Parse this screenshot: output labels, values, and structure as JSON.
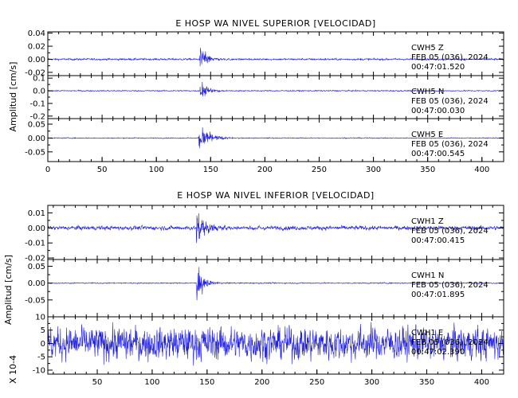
{
  "chart_data": [
    {
      "type": "line",
      "title": "E HOSP WA NIVEL SUPERIOR [VELOCIDAD]",
      "ylabel": "Amplitud [cm/s]",
      "xlabel": "",
      "xlim": [
        0,
        420
      ],
      "x_ticks": [
        0,
        50,
        100,
        150,
        200,
        250,
        300,
        350,
        400
      ],
      "grid": false,
      "line_color": "#1f1fd6",
      "traces": [
        {
          "station": "CWH5",
          "component": "Z",
          "date": "FEB 05 (036), 2024",
          "time": "00:47:01.520",
          "ylim": [
            -0.025,
            0.042
          ],
          "y_ticks": [
            0.04,
            0.02,
            0.0,
            -0.02
          ],
          "y_tick_labels": [
            "0.04",
            "0.02",
            "0.00",
            "-0.02"
          ],
          "noise_amplitude": 0.0012,
          "event_onset": 140,
          "event_peak_amplitude": 0.022,
          "event_decay": 6,
          "event_duration": 60
        },
        {
          "station": "CWH5",
          "component": "N",
          "date": "FEB 05 (036), 2024",
          "time": "00:47:00.030",
          "ylim": [
            -0.22,
            0.12
          ],
          "y_ticks": [
            0.1,
            0.0,
            -0.1,
            -0.2
          ],
          "y_tick_labels": [
            "0.1",
            "0.0",
            "-0.1",
            "-0.2"
          ],
          "noise_amplitude": 0.004,
          "event_onset": 140,
          "event_peak_amplitude": 0.1,
          "event_decay": 6,
          "event_duration": 45
        },
        {
          "station": "CWH5",
          "component": "E",
          "date": "FEB 05 (036), 2024",
          "time": "00:47:00.545",
          "ylim": [
            -0.085,
            0.07
          ],
          "y_ticks": [
            0.05,
            0.0,
            -0.05
          ],
          "y_tick_labels": [
            "0.05",
            "0.00",
            "-0.05"
          ],
          "noise_amplitude": 0.0015,
          "event_onset": 139,
          "event_peak_amplitude": 0.055,
          "event_decay": 9,
          "event_duration": 55
        }
      ]
    },
    {
      "type": "line",
      "title": "E HOSP WA NIVEL INFERIOR [VELOCIDAD]",
      "ylabel": "Amplitud [cm/s]",
      "xlabel": "",
      "xlim": [
        5,
        420
      ],
      "x_ticks": [
        50,
        100,
        150,
        200,
        250,
        300,
        350,
        400
      ],
      "grid": false,
      "line_color": "#1f1fd6",
      "traces": [
        {
          "station": "CWH1",
          "component": "Z",
          "date": "FEB 05 (036), 2024",
          "time": "00:47:00.415",
          "ylim": [
            -0.021,
            0.015
          ],
          "y_ticks": [
            0.01,
            0.0,
            -0.01,
            -0.02
          ],
          "y_tick_labels": [
            "0.01",
            "0.00",
            "-0.01",
            "-0.02"
          ],
          "noise_amplitude": 0.0012,
          "event_onset": 140,
          "event_peak_amplitude": 0.013,
          "event_decay": 8,
          "event_duration": 60
        },
        {
          "station": "CWH1",
          "component": "N",
          "date": "FEB 05 (036), 2024",
          "time": "00:47:01.895",
          "ylim": [
            -0.1,
            0.07
          ],
          "y_ticks": [
            0.05,
            0.0,
            -0.05
          ],
          "y_tick_labels": [
            "0.05",
            "0.00",
            "-0.05"
          ],
          "noise_amplitude": 0.0015,
          "event_onset": 140,
          "event_peak_amplitude": 0.06,
          "event_decay": 6,
          "event_duration": 45
        },
        {
          "station": "CWH1",
          "component": "E",
          "date": "FEB 05 (036), 2024",
          "time": "00:47:02.390",
          "ylim": [
            -11.5,
            10
          ],
          "y_ticks": [
            10,
            5,
            0,
            -5,
            -10
          ],
          "y_tick_labels": [
            "10",
            "5",
            "0",
            "-5",
            "-10"
          ],
          "scale_label": "X 10-4",
          "noise_amplitude": 5.5,
          "event_onset": 0,
          "event_peak_amplitude": 0,
          "event_decay": 1,
          "event_duration": 0
        }
      ]
    }
  ]
}
